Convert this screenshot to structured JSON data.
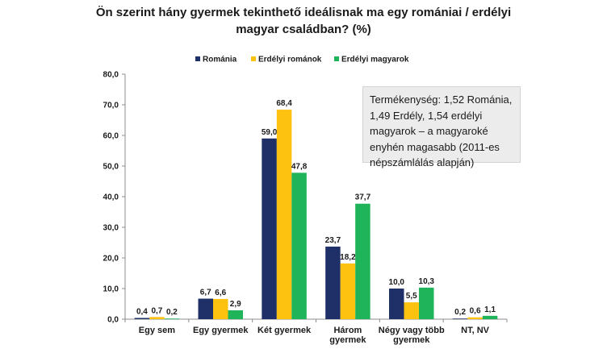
{
  "title": {
    "line1": "Ön szerint hány gyermek tekinthető ideálisnak ma egy romániai / erdélyi",
    "line2": "magyar családban? (%)"
  },
  "note": "Termékenység: 1,52 Románia, 1,49 Erdély, 1,54 erdélyi magyarok – a magyaroké enyhén magasabb (2011-es népszámlálás alapján)",
  "chart_data": {
    "type": "bar",
    "categories": [
      [
        "Egy sem"
      ],
      [
        "Egy gyermek"
      ],
      [
        "Két gyermek"
      ],
      [
        "Három",
        "gyermek"
      ],
      [
        "Négy vagy több",
        "gyermek"
      ],
      [
        "NT, NV"
      ]
    ],
    "series": [
      {
        "name": "Románia",
        "color": "#1f3069",
        "values": [
          0.4,
          6.7,
          59.0,
          23.7,
          10.0,
          0.2
        ],
        "labels": [
          "0,4",
          "6,7",
          "59,0",
          "23,7",
          "10,0",
          "0,2"
        ]
      },
      {
        "name": "Erdélyi románok",
        "color": "#fdc20f",
        "values": [
          0.7,
          6.6,
          68.4,
          18.2,
          5.5,
          0.6
        ],
        "labels": [
          "0,7",
          "6,6",
          "68,4",
          "18,2",
          "5,5",
          "0,6"
        ]
      },
      {
        "name": "Erdélyi magyarok",
        "color": "#1fb45a",
        "values": [
          0.2,
          2.9,
          47.8,
          37.7,
          10.3,
          1.1
        ],
        "labels": [
          "0,2",
          "2,9",
          "47,8",
          "37,7",
          "10,3",
          "1,1"
        ]
      }
    ],
    "ylim": [
      0,
      80
    ],
    "yticks": [
      "0,0",
      "10,0",
      "20,0",
      "30,0",
      "40,0",
      "50,0",
      "60,0",
      "70,0",
      "80,0"
    ],
    "grid": false,
    "legend_position": "top"
  }
}
